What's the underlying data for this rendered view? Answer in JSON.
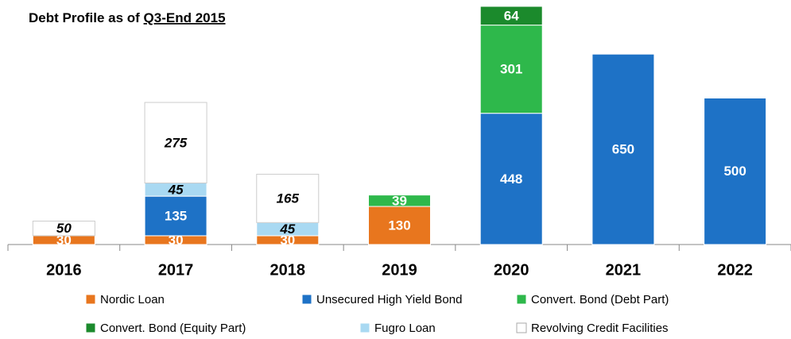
{
  "chart_data": {
    "type": "stacked_bar",
    "title": {
      "text": "Debt Profile as of",
      "underlined": "Q3-End 2015"
    },
    "categories": [
      "2016",
      "2017",
      "2018",
      "2019",
      "2020",
      "2021",
      "2022"
    ],
    "series": [
      {
        "name": "Nordic Loan",
        "color": "#e8761e",
        "values": [
          30,
          30,
          30,
          130,
          null,
          null,
          null
        ]
      },
      {
        "name": "Unsecured High Yield Bond",
        "color": "#1e72c6",
        "values": [
          null,
          135,
          null,
          null,
          448,
          650,
          500
        ]
      },
      {
        "name": "Convert. Bond (Debt Part)",
        "color": "#2eb84b",
        "values": [
          null,
          null,
          null,
          39,
          301,
          null,
          null
        ]
      },
      {
        "name": "Convert. Bond (Equity Part)",
        "color": "#1b8a2c",
        "values": [
          null,
          null,
          null,
          null,
          64,
          null,
          null
        ]
      },
      {
        "name": "Fugro Loan",
        "color": "#a9d9f2",
        "values": [
          null,
          45,
          45,
          null,
          null,
          null,
          null
        ]
      },
      {
        "name": "Revolving Credit Facilities",
        "color": "#ffffff",
        "values": [
          50,
          275,
          165,
          null,
          null,
          null,
          null
        ]
      }
    ]
  }
}
